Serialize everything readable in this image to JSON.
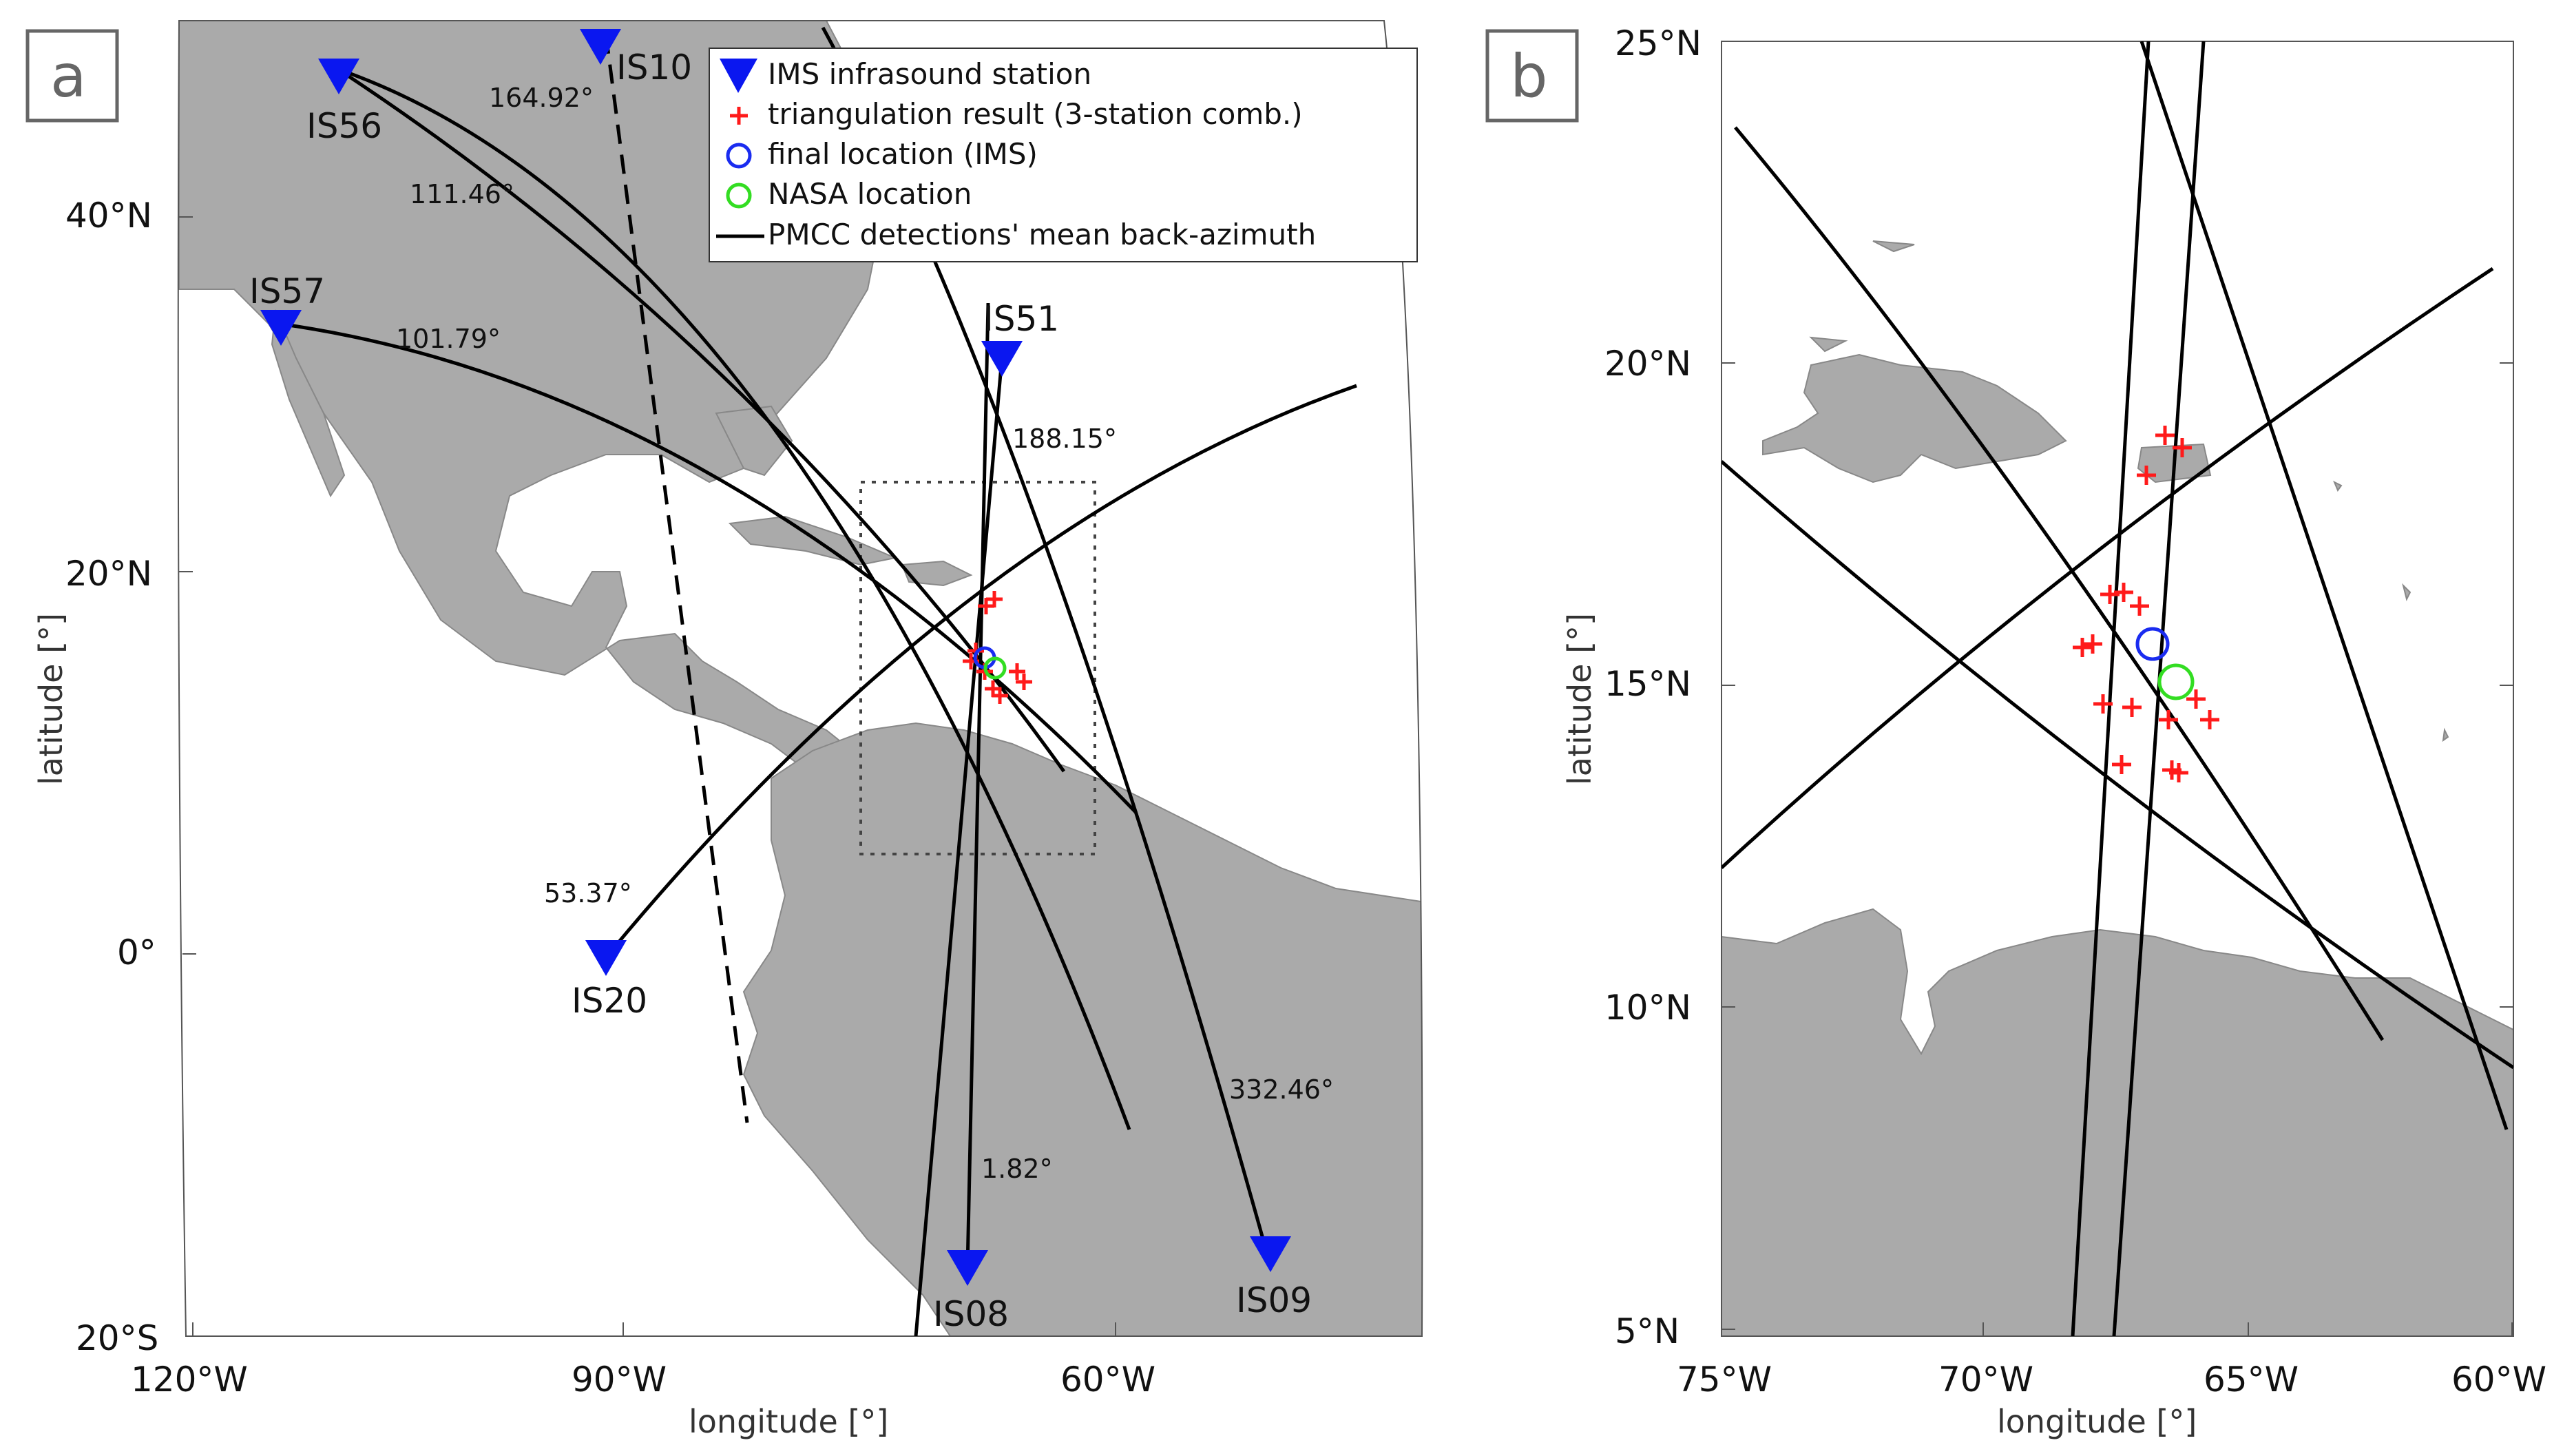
{
  "panel_a": {
    "label": "a",
    "ticks_lat": [
      "40°N",
      "20°N",
      "0°",
      "20°S"
    ],
    "ticks_lon": [
      "120°W",
      "90°W",
      "60°W"
    ],
    "xlabel": "longitude [°]",
    "ylabel": "latitude [°]",
    "stations": [
      {
        "name": "IS56"
      },
      {
        "name": "IS10"
      },
      {
        "name": "IS57"
      },
      {
        "name": "IS51"
      },
      {
        "name": "IS20"
      },
      {
        "name": "IS08"
      },
      {
        "name": "IS09"
      }
    ],
    "azimuths": [
      "164.92°",
      "111.46°",
      "101.79°",
      "188.15°",
      "53.37°",
      "332.46°",
      "1.82°"
    ],
    "legend": [
      "IMS infrasound station",
      "triangulation result (3-station comb.)",
      "final location (IMS)",
      "NASA location",
      "PMCC detections' mean back-azimuth"
    ]
  },
  "panel_b": {
    "label": "b",
    "ticks_lat": [
      "25°N",
      "20°N",
      "15°N",
      "10°N",
      "5°N"
    ],
    "ticks_lon": [
      "75°W",
      "70°W",
      "65°W",
      "60°W"
    ],
    "xlabel": "longitude [°]",
    "ylabel": "latitude [°]"
  },
  "colors": {
    "land": "#aaaaaa",
    "station": "#0a17f0",
    "triangulation": "#ff1a1a",
    "final_location": "#1a2cf0",
    "nasa_location": "#33dd22",
    "lines": "#000000"
  }
}
